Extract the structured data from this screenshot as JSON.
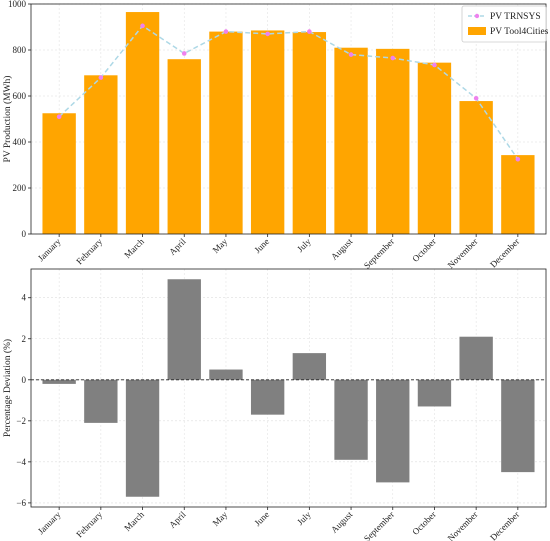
{
  "chart_data": [
    {
      "type": "bar",
      "ylabel": "PV Production (MWh)",
      "ylim": [
        0,
        1000
      ],
      "yticks": [
        0,
        200,
        400,
        600,
        800,
        1000
      ],
      "grid": true,
      "legend_position": "top-right",
      "categories": [
        "January",
        "February",
        "March",
        "April",
        "May",
        "June",
        "July",
        "August",
        "September",
        "October",
        "November",
        "December"
      ],
      "series": [
        {
          "name": "PV TRNSYS",
          "kind": "line",
          "color": "#add8e6",
          "marker_color": "#ee82ee",
          "values": [
            510,
            680,
            905,
            785,
            880,
            870,
            880,
            780,
            765,
            735,
            590,
            325
          ]
        },
        {
          "name": "PV Tool4Cities",
          "kind": "bar",
          "color": "#ffa500",
          "values": [
            525,
            690,
            965,
            760,
            880,
            885,
            878,
            810,
            805,
            745,
            578,
            343
          ]
        }
      ]
    },
    {
      "type": "bar",
      "ylabel": "Percentage Deviation (%)",
      "ylim": [
        -6.2,
        5.4
      ],
      "yticks": [
        -6,
        -4,
        -2,
        0,
        2,
        4
      ],
      "grid": true,
      "zero_line": "dashed",
      "color": "#808080",
      "categories": [
        "January",
        "February",
        "March",
        "April",
        "May",
        "June",
        "July",
        "August",
        "September",
        "October",
        "November",
        "December"
      ],
      "values": [
        -0.2,
        -2.1,
        -5.7,
        4.9,
        0.5,
        -1.7,
        1.3,
        -3.9,
        -5.0,
        -1.3,
        2.1,
        -4.5
      ]
    }
  ]
}
